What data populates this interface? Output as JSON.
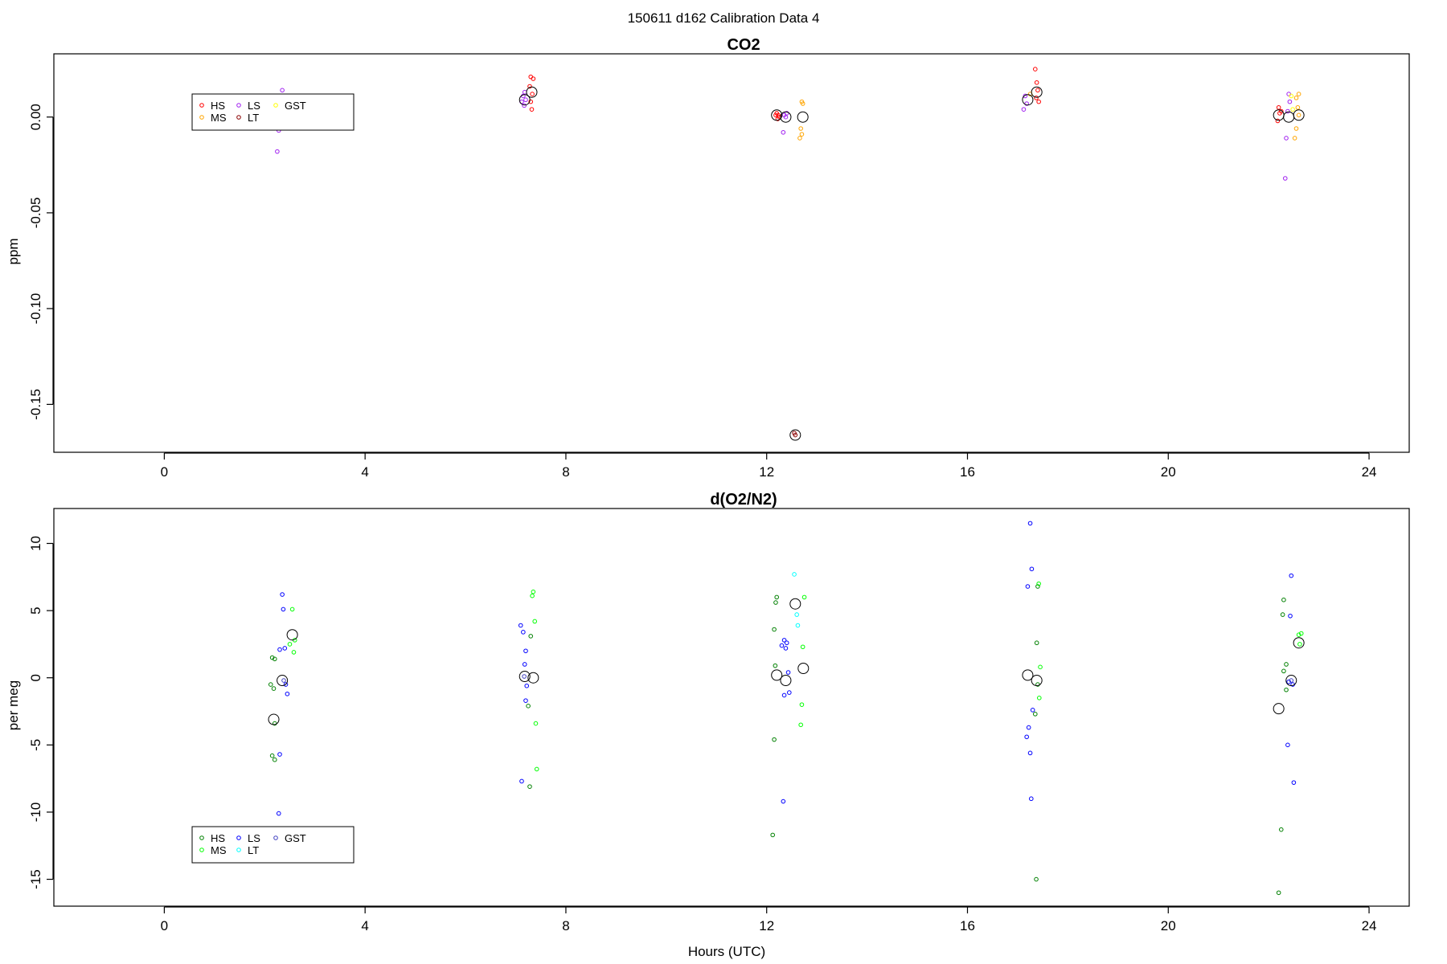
{
  "figure": {
    "title": "150611   d162   Calibration Data 4",
    "xlabel": "Hours (UTC)"
  },
  "chart_data": [
    {
      "type": "scatter",
      "title": "CO2",
      "xlabel": "",
      "ylabel": "ppm",
      "xlim": [
        -2.2,
        24.8
      ],
      "ylim": [
        -0.175,
        0.033
      ],
      "xticks": [
        0,
        4,
        8,
        12,
        16,
        20,
        24
      ],
      "yticks": [
        0.0,
        -0.05,
        -0.1,
        -0.15
      ],
      "ytick_labels": [
        "0.00",
        "-0.05",
        "-0.10",
        "-0.15"
      ],
      "grid": false,
      "legend": {
        "position": "top-left",
        "columns": 3
      },
      "series": [
        {
          "name": "HS",
          "color": "#ff0000",
          "points": [
            [
              7.3,
              0.021
            ],
            [
              7.35,
              0.02
            ],
            [
              7.28,
              0.016
            ],
            [
              7.33,
              0.012
            ],
            [
              7.3,
              0.008
            ],
            [
              7.32,
              0.004
            ],
            [
              12.18,
              0.001
            ],
            [
              12.22,
              -0.001
            ],
            [
              12.2,
              0.002
            ],
            [
              12.25,
              0.0
            ],
            [
              12.23,
              0.001
            ],
            [
              17.35,
              0.025
            ],
            [
              17.38,
              0.018
            ],
            [
              17.4,
              0.014
            ],
            [
              17.37,
              0.01
            ],
            [
              17.42,
              0.008
            ],
            [
              22.2,
              0.005
            ],
            [
              22.22,
              0.002
            ],
            [
              22.18,
              -0.002
            ],
            [
              22.25,
              0.003
            ]
          ]
        },
        {
          "name": "MS",
          "color": "#ffa500",
          "points": [
            [
              12.7,
              0.008
            ],
            [
              12.72,
              0.007
            ],
            [
              12.68,
              -0.006
            ],
            [
              12.66,
              -0.011
            ],
            [
              12.7,
              -0.009
            ],
            [
              17.25,
              0.012
            ],
            [
              22.55,
              0.01
            ],
            [
              22.58,
              0.005
            ],
            [
              22.6,
              0.001
            ],
            [
              22.55,
              -0.006
            ],
            [
              22.52,
              -0.011
            ],
            [
              22.6,
              0.012
            ]
          ]
        },
        {
          "name": "LS",
          "color": "#a020f0",
          "points": [
            [
              2.35,
              0.014
            ],
            [
              2.28,
              -0.007
            ],
            [
              2.25,
              -0.018
            ],
            [
              7.15,
              0.011
            ],
            [
              7.18,
              0.013
            ],
            [
              7.2,
              0.009
            ],
            [
              7.12,
              0.008
            ],
            [
              7.17,
              0.006
            ],
            [
              12.35,
              0.001
            ],
            [
              12.4,
              0.002
            ],
            [
              12.38,
              0.0
            ],
            [
              12.33,
              -0.008
            ],
            [
              17.15,
              0.011
            ],
            [
              17.18,
              0.007
            ],
            [
              17.12,
              0.004
            ],
            [
              22.4,
              0.012
            ],
            [
              22.42,
              0.008
            ],
            [
              22.38,
              0.003
            ],
            [
              22.35,
              -0.011
            ],
            [
              22.33,
              -0.032
            ]
          ]
        },
        {
          "name": "LT",
          "color": "#8b0000",
          "points": [
            [
              12.55,
              -0.165
            ],
            [
              12.57,
              -0.166
            ]
          ]
        },
        {
          "name": "GST",
          "color": "#ffff00",
          "points": [
            [
              22.45,
              0.011
            ],
            [
              22.48,
              0.004
            ]
          ]
        }
      ],
      "means": [
        [
          7.32,
          0.013
        ],
        [
          7.18,
          0.009
        ],
        [
          12.2,
          0.001
        ],
        [
          12.38,
          0.0
        ],
        [
          12.72,
          0.0
        ],
        [
          12.57,
          -0.166
        ],
        [
          17.38,
          0.013
        ],
        [
          17.2,
          0.009
        ],
        [
          22.2,
          0.001
        ],
        [
          22.4,
          0.0
        ],
        [
          22.6,
          0.001
        ]
      ]
    },
    {
      "type": "scatter",
      "title": "d(O2/N2)",
      "xlabel": "Hours (UTC)",
      "ylabel": "per meg",
      "xlim": [
        -2.2,
        24.8
      ],
      "ylim": [
        -17.0,
        12.6
      ],
      "xticks": [
        0,
        4,
        8,
        12,
        16,
        20,
        24
      ],
      "yticks": [
        10,
        5,
        0,
        -5,
        -10,
        -15
      ],
      "ytick_labels": [
        "10",
        "5",
        "0",
        "-5",
        "-10",
        "-15"
      ],
      "grid": false,
      "legend": {
        "position": "bottom-left",
        "columns": 3
      },
      "series": [
        {
          "name": "HS",
          "color": "#008000",
          "points": [
            [
              2.15,
              1.5
            ],
            [
              2.2,
              1.4
            ],
            [
              2.12,
              -0.5
            ],
            [
              2.18,
              -0.8
            ],
            [
              2.2,
              -3.4
            ],
            [
              2.15,
              -5.8
            ],
            [
              2.2,
              -6.1
            ],
            [
              7.3,
              3.1
            ],
            [
              7.25,
              -2.1
            ],
            [
              7.28,
              -8.1
            ],
            [
              12.2,
              6.0
            ],
            [
              12.18,
              5.6
            ],
            [
              12.15,
              3.6
            ],
            [
              12.17,
              0.9
            ],
            [
              12.15,
              -4.6
            ],
            [
              12.12,
              -11.7
            ],
            [
              17.4,
              6.8
            ],
            [
              17.38,
              2.6
            ],
            [
              17.4,
              -0.5
            ],
            [
              17.35,
              -2.7
            ],
            [
              17.37,
              -15.0
            ],
            [
              22.3,
              5.8
            ],
            [
              22.28,
              4.7
            ],
            [
              22.35,
              1.0
            ],
            [
              22.3,
              0.5
            ],
            [
              22.35,
              -0.9
            ],
            [
              22.25,
              -11.3
            ],
            [
              22.2,
              -16.0
            ]
          ]
        },
        {
          "name": "MS",
          "color": "#00ff00",
          "points": [
            [
              2.55,
              5.1
            ],
            [
              2.6,
              2.8
            ],
            [
              2.58,
              1.9
            ],
            [
              2.5,
              2.5
            ],
            [
              7.35,
              6.4
            ],
            [
              7.33,
              6.1
            ],
            [
              7.38,
              4.2
            ],
            [
              7.4,
              -3.4
            ],
            [
              7.42,
              -6.8
            ],
            [
              12.75,
              6.0
            ],
            [
              12.72,
              2.3
            ],
            [
              12.7,
              -2.0
            ],
            [
              12.68,
              -3.5
            ],
            [
              17.42,
              7.0
            ],
            [
              17.45,
              0.8
            ],
            [
              17.43,
              -1.5
            ],
            [
              22.65,
              3.3
            ],
            [
              22.62,
              2.5
            ],
            [
              22.6,
              3.2
            ]
          ]
        },
        {
          "name": "LS",
          "color": "#0000ff",
          "points": [
            [
              2.35,
              6.2
            ],
            [
              2.37,
              5.1
            ],
            [
              2.4,
              2.2
            ],
            [
              2.3,
              2.1
            ],
            [
              2.42,
              -0.5
            ],
            [
              2.45,
              -1.2
            ],
            [
              2.3,
              -5.7
            ],
            [
              2.28,
              -10.1
            ],
            [
              7.1,
              3.9
            ],
            [
              7.15,
              3.4
            ],
            [
              7.2,
              2.0
            ],
            [
              7.18,
              1.0
            ],
            [
              7.22,
              -0.6
            ],
            [
              7.2,
              -1.7
            ],
            [
              7.12,
              -7.7
            ],
            [
              12.35,
              2.8
            ],
            [
              12.4,
              2.6
            ],
            [
              12.38,
              2.2
            ],
            [
              12.3,
              2.4
            ],
            [
              12.43,
              0.4
            ],
            [
              12.45,
              -1.1
            ],
            [
              12.35,
              -1.3
            ],
            [
              12.33,
              -9.2
            ],
            [
              17.25,
              11.5
            ],
            [
              17.28,
              8.1
            ],
            [
              17.2,
              6.8
            ],
            [
              17.3,
              -2.4
            ],
            [
              17.22,
              -3.7
            ],
            [
              17.18,
              -4.4
            ],
            [
              17.25,
              -5.6
            ],
            [
              17.27,
              -9.0
            ],
            [
              22.45,
              7.6
            ],
            [
              22.43,
              4.6
            ],
            [
              22.48,
              -0.5
            ],
            [
              22.4,
              -0.3
            ],
            [
              22.38,
              -5.0
            ],
            [
              22.5,
              -7.8
            ]
          ]
        },
        {
          "name": "LT",
          "color": "#00ffff",
          "points": [
            [
              12.55,
              7.7
            ],
            [
              12.6,
              4.7
            ],
            [
              12.62,
              3.9
            ]
          ]
        },
        {
          "name": "GST",
          "color": "#4040c0",
          "points": [
            [
              2.38,
              -0.2
            ],
            [
              7.17,
              0.1
            ],
            [
              22.45,
              -0.2
            ]
          ]
        }
      ],
      "means": [
        [
          2.55,
          3.2
        ],
        [
          2.35,
          -0.2
        ],
        [
          2.18,
          -3.1
        ],
        [
          7.18,
          0.1
        ],
        [
          7.35,
          0.0
        ],
        [
          12.57,
          5.5
        ],
        [
          12.73,
          0.7
        ],
        [
          12.2,
          0.2
        ],
        [
          12.38,
          -0.2
        ],
        [
          17.2,
          0.2
        ],
        [
          17.38,
          -0.2
        ],
        [
          22.6,
          2.6
        ],
        [
          22.45,
          -0.2
        ],
        [
          22.2,
          -2.3
        ]
      ]
    }
  ]
}
